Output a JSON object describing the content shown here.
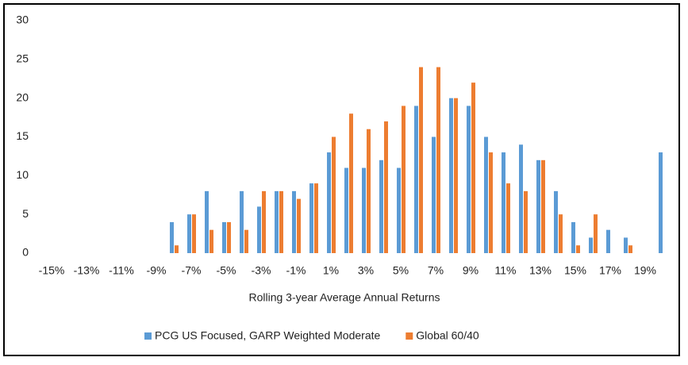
{
  "chart_data": {
    "type": "bar",
    "x_label": "Rolling 3-year Average Annual Returns",
    "categories": [
      "-15%",
      null,
      "-13%",
      null,
      "-11%",
      null,
      "-9%",
      null,
      "-7%",
      null,
      "-5%",
      null,
      "-3%",
      null,
      "-1%",
      null,
      "1%",
      null,
      "3%",
      null,
      "5%",
      null,
      "7%",
      null,
      "9%",
      null,
      "11%",
      null,
      "13%",
      null,
      "15%",
      null,
      "17%",
      null,
      "19%",
      null
    ],
    "series": [
      {
        "name": "PCG US Focused, GARP Weighted Moderate",
        "color": "#5b9bd5",
        "values": [
          0,
          0,
          0,
          0,
          0,
          0,
          0,
          4,
          5,
          8,
          4,
          8,
          6,
          8,
          8,
          9,
          13,
          11,
          11,
          12,
          11,
          19,
          15,
          20,
          19,
          15,
          13,
          14,
          12,
          8,
          4,
          2,
          3,
          2,
          0,
          13
        ]
      },
      {
        "name": "Global 60/40",
        "color": "#ed7d31",
        "values": [
          0,
          0,
          0,
          0,
          0,
          0,
          0,
          1,
          5,
          3,
          4,
          3,
          8,
          8,
          7,
          9,
          15,
          18,
          16,
          17,
          19,
          24,
          24,
          20,
          22,
          13,
          9,
          8,
          12,
          5,
          1,
          5,
          0,
          1,
          0,
          0
        ]
      }
    ],
    "ylim": [
      0,
      30
    ],
    "yticks": [
      0,
      5,
      10,
      15,
      20,
      25,
      30
    ],
    "grid": false,
    "legend": "bottom"
  }
}
